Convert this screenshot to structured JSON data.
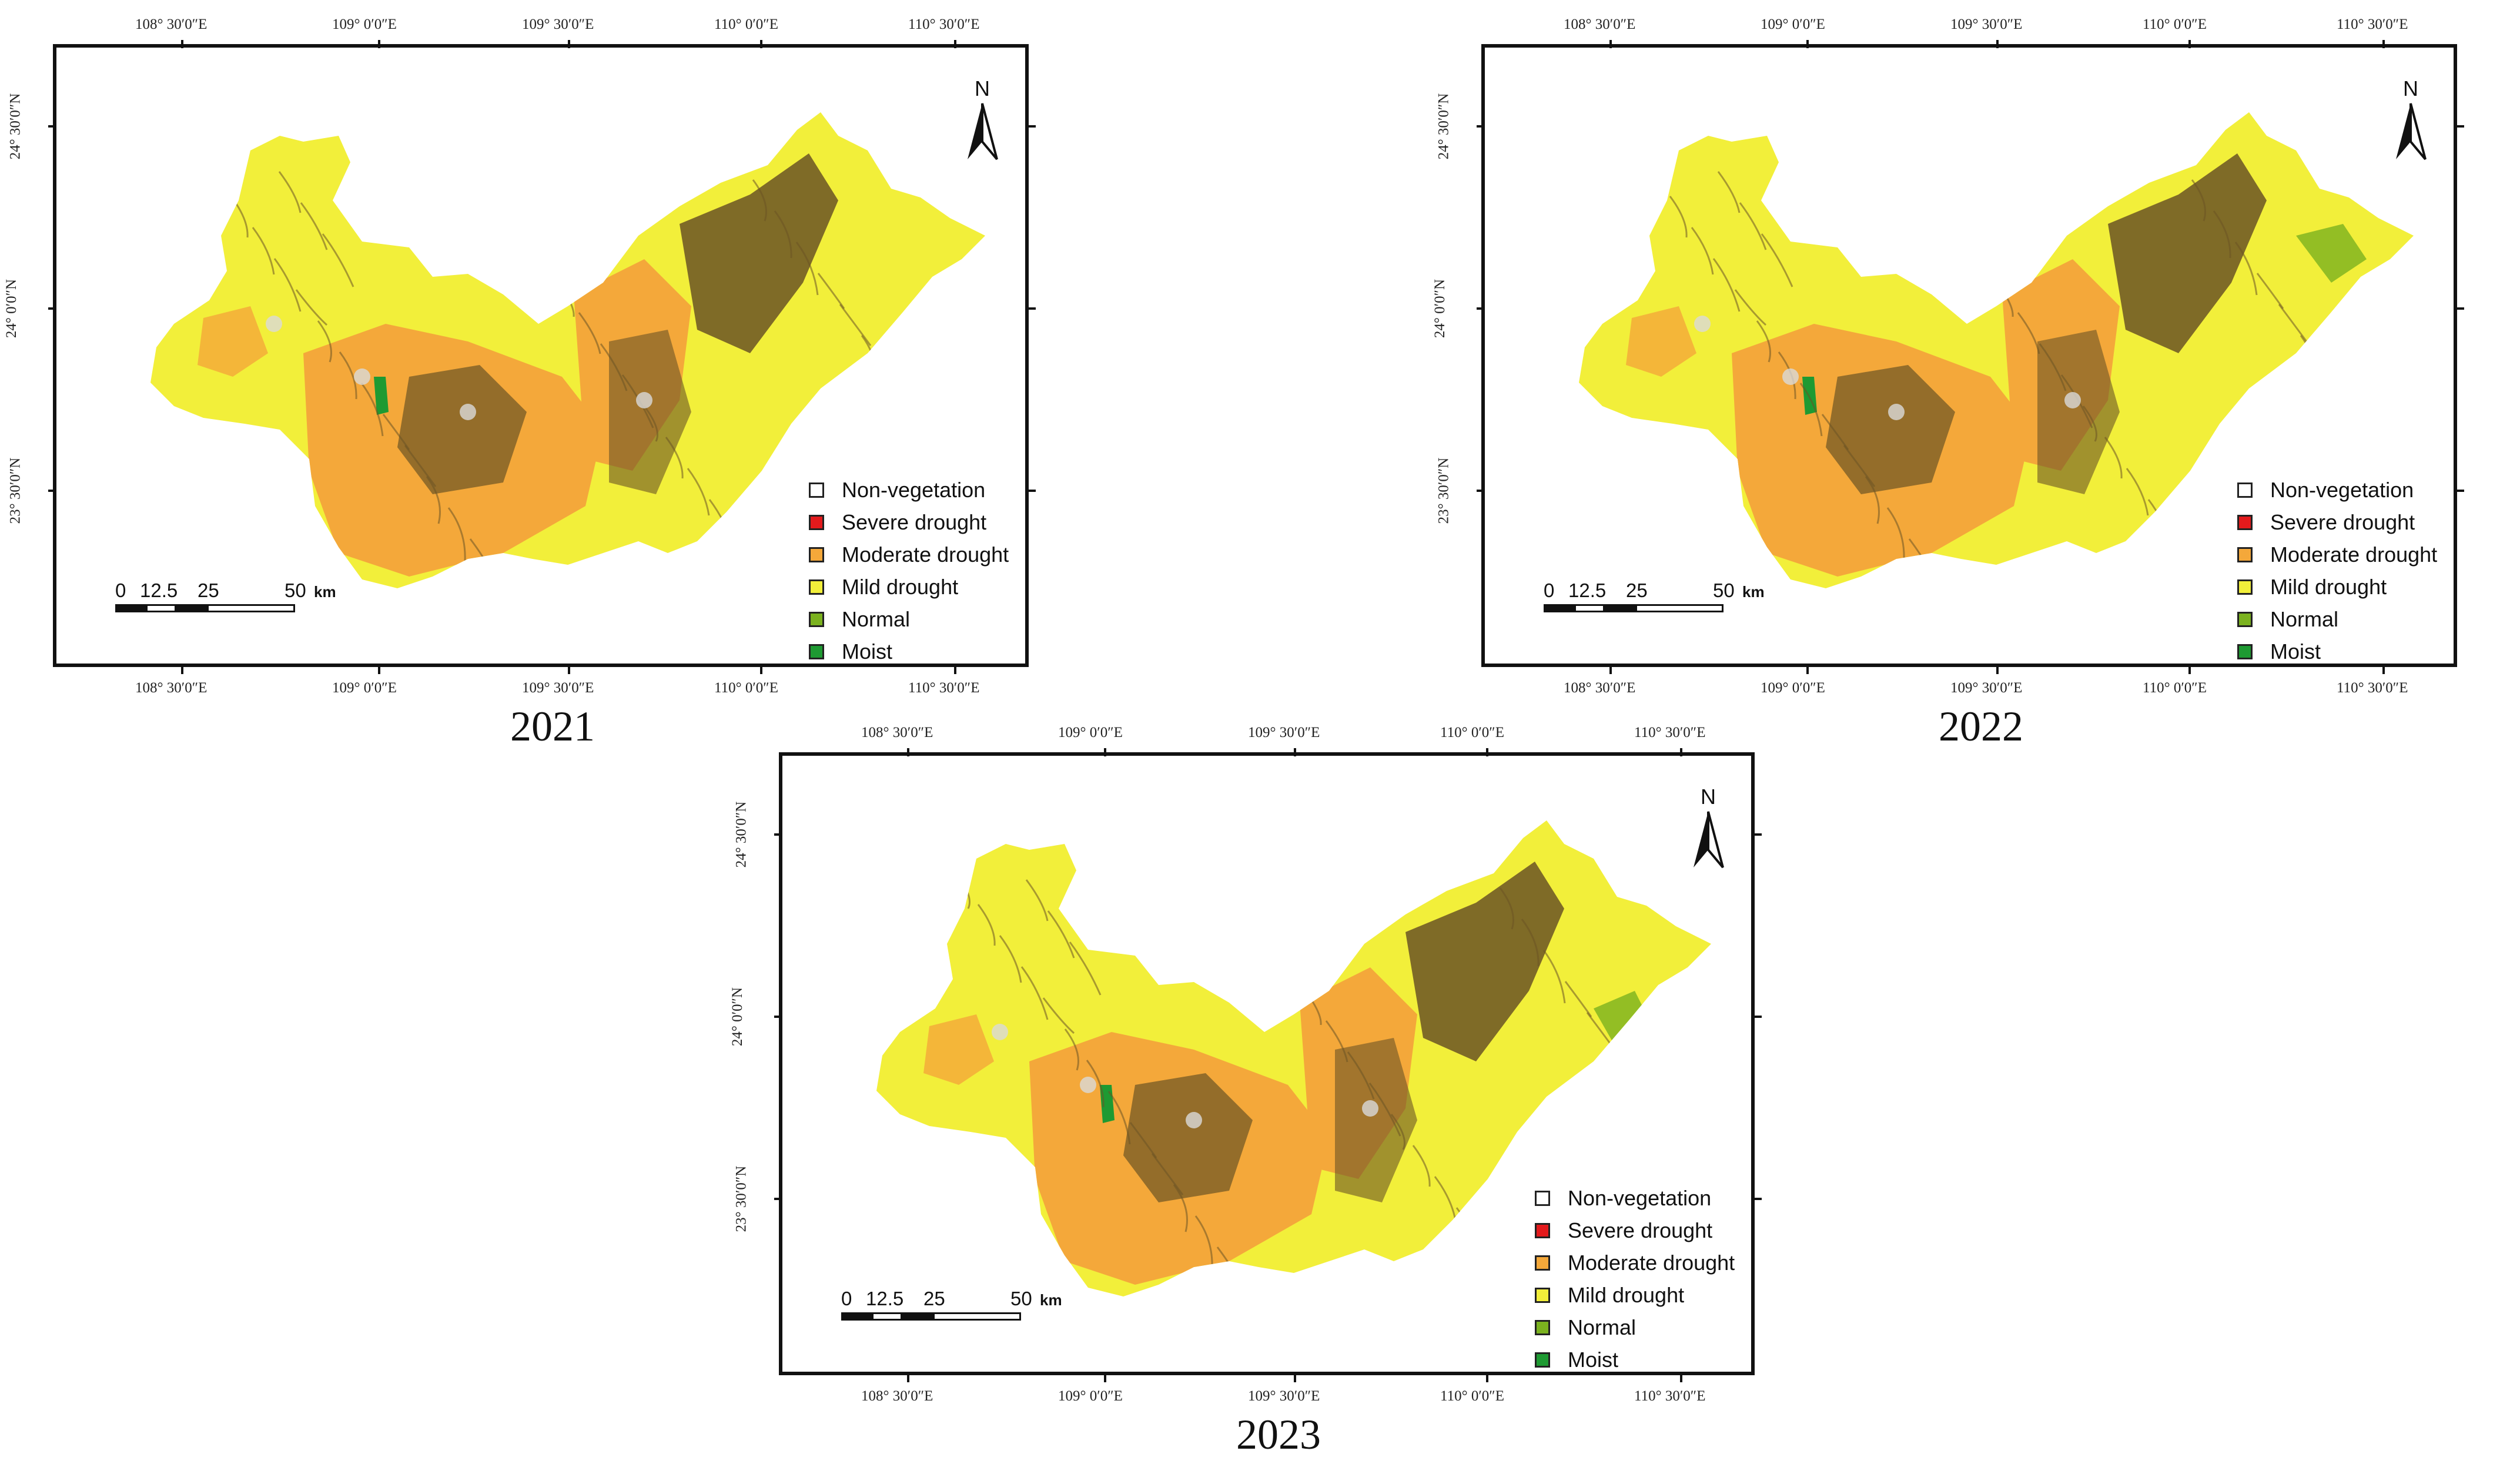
{
  "colors": {
    "non_vegetation": "#ffffff",
    "severe_drought": "#e31a1c",
    "moderate_drought": "#f4a83a",
    "mild_drought": "#f2ef3a",
    "normal": "#7bb21f",
    "moist": "#1e9a32",
    "dark_drought": "#6b5424"
  },
  "axes": {
    "lon_labels": [
      "108° 30′0″E",
      "109° 0′0″E",
      "109° 30′0″E",
      "110° 0′0″E",
      "110° 30′0″E"
    ],
    "lat_labels": [
      "24° 30′0″N",
      "24° 0′0″N",
      "23° 30′0″N"
    ]
  },
  "legend": {
    "items": [
      {
        "label": "Non-vegetation",
        "color": "#ffffff"
      },
      {
        "label": "Severe drought",
        "color": "#e31a1c"
      },
      {
        "label": "Moderate drought",
        "color": "#f4a83a"
      },
      {
        "label": "Mild drought",
        "color": "#f2ef3a"
      },
      {
        "label": "Normal",
        "color": "#7bb21f"
      },
      {
        "label": "Moist",
        "color": "#1e9a32"
      }
    ]
  },
  "scale_bar": {
    "ticks": [
      "0",
      "12.5",
      "25",
      "50"
    ],
    "unit": "km"
  },
  "north_arrow": {
    "label": "N",
    "icon": "north-arrow-icon"
  },
  "maps": [
    {
      "year": "2021"
    },
    {
      "year": "2022"
    },
    {
      "year": "2023"
    }
  ]
}
